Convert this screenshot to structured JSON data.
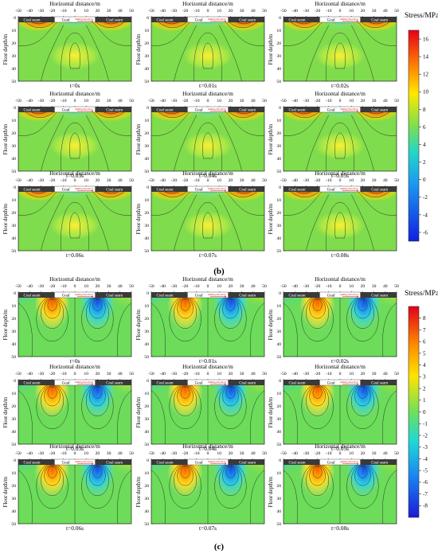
{
  "figure": {
    "panel_b_label": "(b)",
    "panel_c_label": "(c)"
  },
  "common": {
    "xlabel": "Horizontal distance/m",
    "ylabel": "Floor depth/m",
    "coal_seam_label": "Coal seam",
    "goaf_label": "Goaf",
    "mining_direction_label": "mining direction",
    "x_ticks": [
      -50,
      -40,
      -30,
      -20,
      -10,
      0,
      10,
      20,
      30,
      40,
      50
    ],
    "y_ticks": [
      0,
      10,
      20,
      30,
      40,
      50
    ]
  },
  "chart_data": [
    {
      "type": "heatmap",
      "panel": "b",
      "xlabel": "Horizontal distance/m",
      "ylabel": "Floor depth/m",
      "xlim": [
        -50,
        50
      ],
      "ylim": [
        0,
        50
      ],
      "colorbar_title": "Stress/MPa",
      "colorbar_ticks": [
        16,
        14,
        12,
        10,
        8,
        6,
        4,
        2,
        0,
        -2,
        -4,
        -6
      ],
      "colorbar_range": [
        -7,
        17
      ],
      "timesteps": [
        "t=0s",
        "t=0.01s",
        "t=0.02s",
        "t=0.03s",
        "t=0.04s",
        "t=0.05s",
        "t=0.06s",
        "t=0.07s",
        "t=0.08s"
      ],
      "features": [
        {
          "x": -35,
          "depth": 2,
          "value": 16
        },
        {
          "x": 35,
          "depth": 2,
          "value": 16
        },
        {
          "x": 0,
          "depth": 1,
          "value": 2
        },
        {
          "x": 0,
          "depth": 28,
          "value": 4
        },
        {
          "x": -20,
          "depth": 38,
          "value": 6
        },
        {
          "x": 20,
          "depth": 38,
          "value": 6
        }
      ]
    },
    {
      "type": "heatmap",
      "panel": "c",
      "xlabel": "Horizontal distance/m",
      "ylabel": "Floor depth/m",
      "xlim": [
        -50,
        50
      ],
      "ylim": [
        0,
        50
      ],
      "colorbar_title": "Stress/MPa",
      "colorbar_ticks": [
        8,
        7,
        6,
        5,
        4,
        3,
        2,
        1,
        0,
        -1,
        -2,
        -3,
        -4,
        -5,
        -6,
        -7,
        -8
      ],
      "colorbar_range": [
        -9,
        9
      ],
      "timesteps": [
        "t=0s",
        "t=0.01s",
        "t=0.02s",
        "t=0.03s",
        "t=0.04s",
        "t=0.05s",
        "t=0.06s",
        "t=0.07s",
        "t=0.08s"
      ],
      "features": [
        {
          "x": -20,
          "depth": 8,
          "value": 6
        },
        {
          "x": 20,
          "depth": 8,
          "value": -6
        },
        {
          "x": -40,
          "depth": 5,
          "value": -2
        },
        {
          "x": 40,
          "depth": 5,
          "value": 2
        }
      ]
    }
  ],
  "colors": {
    "seam_bar": "#3a3a3a",
    "goaf_box": "#ffffff",
    "mining_text": "#d01010",
    "contour_line": "#1a1a1a"
  }
}
